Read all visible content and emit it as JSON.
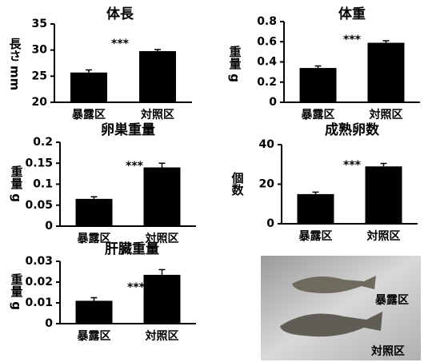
{
  "chart_data": [
    {
      "type": "bar",
      "title": "体長",
      "ylabel": "長さ mm",
      "annotation": "***",
      "color": "#000000",
      "categories": [
        "暴露区",
        "対照区"
      ],
      "values": [
        25.7,
        29.8
      ],
      "errors": [
        0.5,
        0.3
      ],
      "ylim": [
        20,
        35
      ],
      "yticks": [
        20,
        25,
        30,
        35
      ]
    },
    {
      "type": "bar",
      "title": "体重",
      "ylabel": "重量 g",
      "annotation": "***",
      "color": "#000000",
      "categories": [
        "暴露区",
        "対照区"
      ],
      "values": [
        0.34,
        0.59
      ],
      "errors": [
        0.02,
        0.02
      ],
      "ylim": [
        0,
        0.8
      ],
      "yticks": [
        0,
        0.2,
        0.4,
        0.6,
        0.8
      ]
    },
    {
      "type": "bar",
      "title": "卵巣重量",
      "ylabel": "重量 g",
      "annotation": "***",
      "color": "#000000",
      "categories": [
        "暴露区",
        "対照区"
      ],
      "values": [
        0.065,
        0.14
      ],
      "errors": [
        0.005,
        0.01
      ],
      "ylim": [
        0,
        0.2
      ],
      "yticks": [
        0,
        0.05,
        0.1,
        0.15,
        0.2
      ]
    },
    {
      "type": "bar",
      "title": "成熟卵数",
      "ylabel": "個数",
      "annotation": "***",
      "color": "#000000",
      "categories": [
        "暴露区",
        "対照区"
      ],
      "values": [
        15,
        29
      ],
      "errors": [
        1,
        1.5
      ],
      "ylim": [
        0,
        40
      ],
      "yticks": [
        0,
        20,
        40
      ]
    },
    {
      "type": "bar",
      "title": "肝臓重量",
      "ylabel": "重量 g",
      "annotation": "***",
      "color": "#000000",
      "categories": [
        "暴露区",
        "対照区"
      ],
      "values": [
        0.011,
        0.0235
      ],
      "errors": [
        0.0015,
        0.0025
      ],
      "ylim": [
        0,
        0.03
      ],
      "yticks": [
        0,
        0.01,
        0.02,
        0.03
      ]
    }
  ],
  "photo": {
    "labels": [
      "暴露区",
      "対照区"
    ]
  }
}
